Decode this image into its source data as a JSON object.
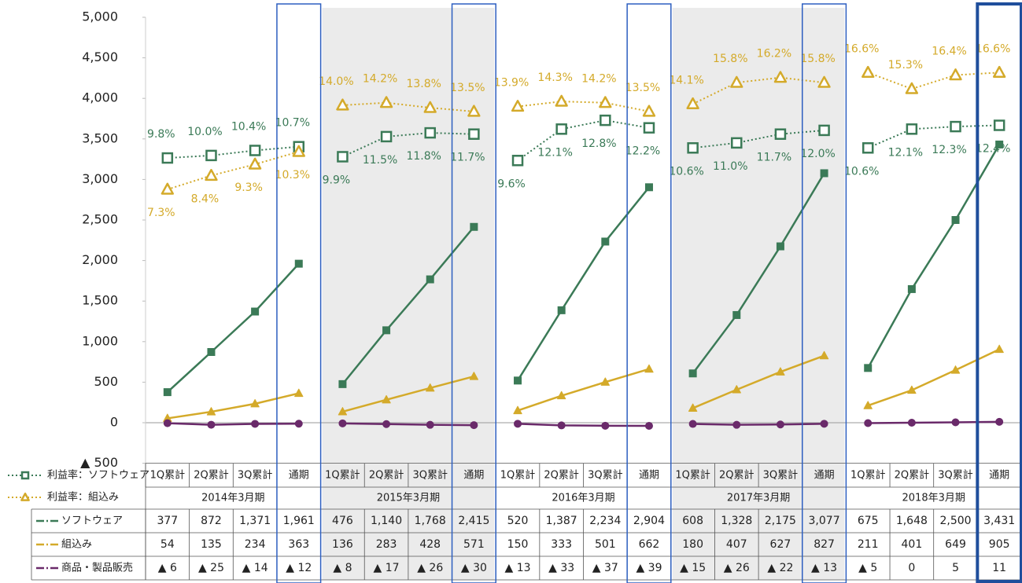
{
  "chart_data": {
    "type": "line",
    "categories": [
      "1Q累計",
      "2Q累計",
      "3Q累計",
      "通期",
      "1Q累計",
      "2Q累計",
      "3Q累計",
      "通期",
      "1Q累計",
      "2Q累計",
      "3Q累計",
      "通期",
      "1Q累計",
      "2Q累計",
      "3Q累計",
      "通期",
      "1Q累計",
      "2Q累計",
      "3Q累計",
      "通期"
    ],
    "groups": [
      "2014年3月期",
      "2015年3月期",
      "2016年3月期",
      "2017年3月期",
      "2018年3月期"
    ],
    "ylim": [
      -500,
      5000
    ],
    "yticks": [
      {
        "value": 5000,
        "label": "5,000"
      },
      {
        "value": 4500,
        "label": "4,500"
      },
      {
        "value": 4000,
        "label": "4,000"
      },
      {
        "value": 3500,
        "label": "3,500"
      },
      {
        "value": 3000,
        "label": "3,000"
      },
      {
        "value": 2500,
        "label": "2,500"
      },
      {
        "value": 2000,
        "label": "2,000"
      },
      {
        "value": 1500,
        "label": "1,500"
      },
      {
        "value": 1000,
        "label": "1,000"
      },
      500,
      0,
      {
        "value": -500,
        "label": "▲ 500"
      }
    ],
    "y2lim": [
      -14.5,
      21
    ],
    "series": [
      {
        "name": "ソフトウェア",
        "color": "#3b7a57",
        "marker": "square",
        "values": [
          377,
          872,
          1371,
          1961,
          476,
          1140,
          1768,
          2415,
          520,
          1387,
          2234,
          2904,
          608,
          1328,
          2175,
          3077,
          675,
          1648,
          2500,
          3431
        ],
        "value_labels": [
          "377",
          "872",
          "1,371",
          "1,961",
          "476",
          "1,140",
          "1,768",
          "2,415",
          "520",
          "1,387",
          "2,234",
          "2,904",
          "608",
          "1,328",
          "2,175",
          "3,077",
          "675",
          "1,648",
          "2,500",
          "3,431"
        ]
      },
      {
        "name": "組込み",
        "color": "#d4aa2a",
        "marker": "triangle",
        "values": [
          54,
          135,
          234,
          363,
          136,
          283,
          428,
          571,
          150,
          333,
          501,
          662,
          180,
          407,
          627,
          827,
          211,
          401,
          649,
          905
        ],
        "value_labels": [
          "54",
          "135",
          "234",
          "363",
          "136",
          "283",
          "428",
          "571",
          "150",
          "333",
          "501",
          "662",
          "180",
          "407",
          "627",
          "827",
          "211",
          "401",
          "649",
          "905"
        ]
      },
      {
        "name": "商品・製品販売",
        "color": "#6a2a6a",
        "marker": "circle",
        "values": [
          -6,
          -25,
          -14,
          -12,
          -8,
          -17,
          -26,
          -30,
          -13,
          -33,
          -37,
          -39,
          -15,
          -26,
          -22,
          -13,
          -5,
          0,
          5,
          11
        ],
        "value_labels": [
          "▲ 6",
          "▲ 25",
          "▲ 14",
          "▲ 12",
          "▲ 8",
          "▲ 17",
          "▲ 26",
          "▲ 30",
          "▲ 13",
          "▲ 33",
          "▲ 37",
          "▲ 39",
          "▲ 15",
          "▲ 26",
          "▲ 22",
          "▲ 13",
          "▲ 5",
          "0",
          "5",
          "11"
        ]
      },
      {
        "name": "利益率：ソフトウェア",
        "color": "#3b7a57",
        "marker": "square",
        "axis": "y2",
        "hollow": true,
        "dotted": true,
        "values": [
          9.8,
          10.0,
          10.4,
          10.7,
          9.9,
          11.5,
          11.8,
          11.7,
          9.6,
          12.1,
          12.8,
          12.2,
          10.6,
          11.0,
          11.7,
          12.0,
          10.6,
          12.1,
          12.3,
          12.4
        ],
        "value_labels": [
          "9.8%",
          "10.0%",
          "10.4%",
          "10.7%",
          "9.9%",
          "11.5%",
          "11.8%",
          "11.7%",
          "9.6%",
          "12.1%",
          "12.8%",
          "12.2%",
          "10.6%",
          "11.0%",
          "11.7%",
          "12.0%",
          "10.6%",
          "12.1%",
          "12.3%",
          "12.4%"
        ]
      },
      {
        "name": "利益率：組込み",
        "color": "#d4aa2a",
        "marker": "triangle",
        "axis": "y2",
        "hollow": true,
        "dotted": true,
        "values": [
          7.3,
          8.4,
          9.3,
          10.3,
          14.0,
          14.2,
          13.8,
          13.5,
          13.9,
          14.3,
          14.2,
          13.5,
          14.1,
          15.8,
          16.2,
          15.8,
          16.6,
          15.3,
          16.4,
          16.6
        ],
        "value_labels": [
          "7.3%",
          "8.4%",
          "9.3%",
          "10.3%",
          "14.0%",
          "14.2%",
          "13.8%",
          "13.5%",
          "13.9%",
          "14.3%",
          "14.2%",
          "13.5%",
          "14.1%",
          "15.8%",
          "16.2%",
          "15.8%",
          "16.6%",
          "15.3%",
          "16.4%",
          "16.6%"
        ]
      }
    ]
  }
}
